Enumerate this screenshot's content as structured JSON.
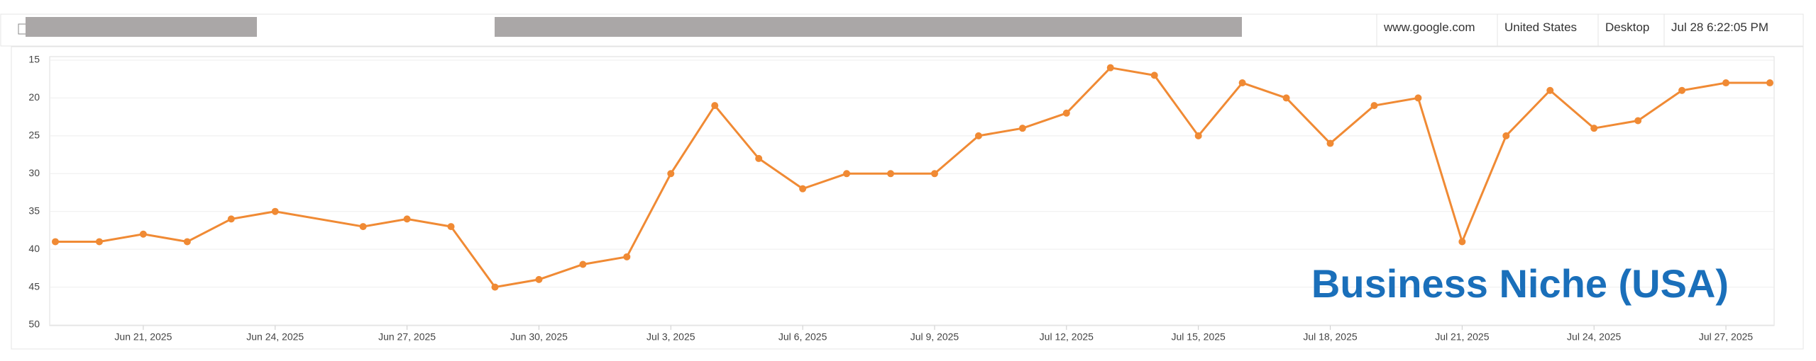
{
  "header": {
    "search_engine": "www.google.com",
    "country": "United States",
    "device": "Desktop",
    "checked_at": "Jul 28 6:22:05 PM"
  },
  "chart_data": {
    "type": "line",
    "annotation": "Business Niche (USA)",
    "x": [
      "Jun 19, 2025",
      "Jun 20, 2025",
      "Jun 21, 2025",
      "Jun 22, 2025",
      "Jun 23, 2025",
      "Jun 24, 2025",
      "Jun 26, 2025",
      "Jun 27, 2025",
      "Jun 28, 2025",
      "Jun 29, 2025",
      "Jun 30, 2025",
      "Jul 1, 2025",
      "Jul 2, 2025",
      "Jul 3, 2025",
      "Jul 4, 2025",
      "Jul 5, 2025",
      "Jul 6, 2025",
      "Jul 7, 2025",
      "Jul 8, 2025",
      "Jul 9, 2025",
      "Jul 10, 2025",
      "Jul 11, 2025",
      "Jul 12, 2025",
      "Jul 13, 2025",
      "Jul 14, 2025",
      "Jul 15, 2025",
      "Jul 16, 2025",
      "Jul 17, 2025",
      "Jul 18, 2025",
      "Jul 19, 2025",
      "Jul 20, 2025",
      "Jul 21, 2025",
      "Jul 22, 2025",
      "Jul 23, 2025",
      "Jul 24, 2025",
      "Jul 25, 2025",
      "Jul 26, 2025",
      "Jul 27, 2025",
      "Jul 28, 2025"
    ],
    "values": [
      39,
      39,
      38,
      39,
      36,
      35,
      37,
      36,
      37,
      45,
      44,
      42,
      41,
      30,
      21,
      28,
      32,
      30,
      30,
      30,
      25,
      24,
      22,
      16,
      17,
      25,
      18,
      20,
      26,
      21,
      20,
      39,
      25,
      19,
      24,
      23,
      19,
      18,
      18
    ],
    "color": "#f08a34",
    "xlim": [
      "Jun 19, 2025",
      "Jul 28, 2025"
    ],
    "xticks": [
      "Jun 21, 2025",
      "Jun 24, 2025",
      "Jun 27, 2025",
      "Jun 30, 2025",
      "Jul 3, 2025",
      "Jul 6, 2025",
      "Jul 9, 2025",
      "Jul 12, 2025",
      "Jul 15, 2025",
      "Jul 18, 2025",
      "Jul 21, 2025",
      "Jul 24, 2025",
      "Jul 27, 2025"
    ],
    "ylim": [
      15,
      50
    ],
    "yticks": [
      15,
      20,
      25,
      30,
      35,
      40,
      45,
      50
    ],
    "y_reversed": true,
    "grid": true
  }
}
